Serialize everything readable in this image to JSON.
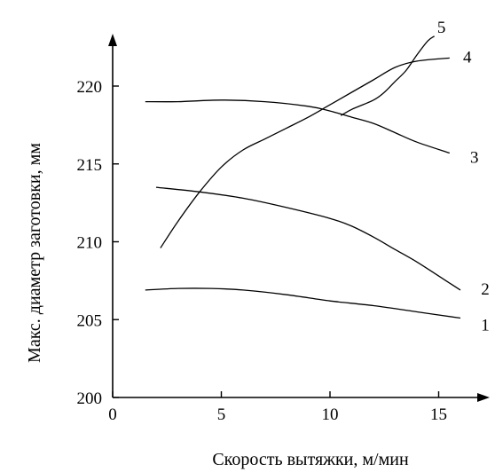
{
  "chart_data": {
    "type": "line",
    "title": "",
    "xlabel": "Скорость вытяжки, м/мин",
    "ylabel": "Макс. диаметр заготовки, мм",
    "xlim": [
      0,
      17
    ],
    "ylim": [
      200,
      223
    ],
    "xticks": [
      0,
      5,
      10,
      15
    ],
    "yticks": [
      200,
      205,
      210,
      215,
      220
    ],
    "grid": false,
    "legend": "none",
    "series": [
      {
        "name": "1",
        "x": [
          1.5,
          3,
          4.5,
          6,
          8,
          10,
          12,
          14,
          16
        ],
        "y": [
          206.9,
          207.0,
          207.0,
          206.9,
          206.6,
          206.2,
          205.9,
          205.5,
          205.1
        ]
      },
      {
        "name": "2",
        "x": [
          2,
          4,
          6,
          8,
          10,
          11,
          12,
          13,
          14,
          15,
          16
        ],
        "y": [
          213.5,
          213.2,
          212.8,
          212.2,
          211.5,
          211.0,
          210.3,
          209.5,
          208.7,
          207.8,
          206.9
        ]
      },
      {
        "name": "3",
        "x": [
          1.5,
          3,
          5,
          7,
          9,
          10,
          11,
          12,
          13,
          14,
          15.5
        ],
        "y": [
          219.0,
          219.0,
          219.1,
          219.0,
          218.7,
          218.4,
          218.0,
          217.6,
          217.0,
          216.4,
          215.7
        ]
      },
      {
        "name": "4",
        "x": [
          2.2,
          3,
          4,
          5,
          6,
          7,
          8,
          9,
          10,
          11,
          12,
          13,
          14,
          15.5
        ],
        "y": [
          209.6,
          211.3,
          213.2,
          214.8,
          215.9,
          216.6,
          217.3,
          218.0,
          218.8,
          219.6,
          220.4,
          221.2,
          221.6,
          221.8
        ]
      },
      {
        "name": "5",
        "x": [
          10.5,
          11,
          12,
          12.5,
          13,
          13.5,
          14,
          14.5,
          14.8
        ],
        "y": [
          218.1,
          218.5,
          219.1,
          219.6,
          220.3,
          221.0,
          222.0,
          222.9,
          223.2
        ]
      }
    ]
  }
}
